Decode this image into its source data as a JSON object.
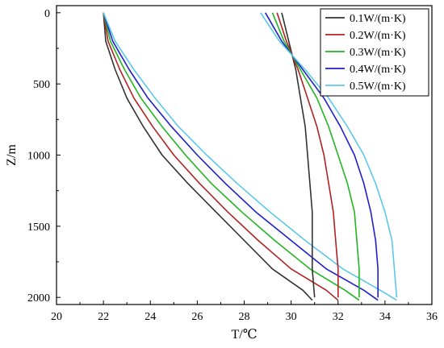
{
  "chart_data": {
    "type": "line",
    "title": "",
    "xlabel": "T/℃",
    "ylabel": "Z/m",
    "xlim": [
      20,
      36
    ],
    "ylim": [
      2050,
      -50
    ],
    "y_inverted": true,
    "x_ticks": [
      20,
      22,
      24,
      26,
      28,
      30,
      32,
      34,
      36
    ],
    "y_ticks": [
      0,
      500,
      1000,
      1500,
      2000
    ],
    "grid": false,
    "legend_position": "top-right",
    "series": [
      {
        "name": "0.1W/(m·K)",
        "color": "#333333",
        "group": "lower",
        "points": [
          [
            22.0,
            0
          ],
          [
            22.1,
            200
          ],
          [
            22.5,
            400
          ],
          [
            23.0,
            600
          ],
          [
            23.7,
            800
          ],
          [
            24.5,
            1000
          ],
          [
            25.6,
            1200
          ],
          [
            26.8,
            1400
          ],
          [
            28.0,
            1600
          ],
          [
            29.2,
            1800
          ],
          [
            30.5,
            1950
          ],
          [
            30.9,
            2020
          ]
        ]
      },
      {
        "name": "0.2W/(m·K)",
        "color": "#b22222",
        "group": "lower",
        "points": [
          [
            22.0,
            0
          ],
          [
            22.2,
            200
          ],
          [
            22.7,
            400
          ],
          [
            23.3,
            600
          ],
          [
            24.1,
            800
          ],
          [
            25.0,
            1000
          ],
          [
            26.1,
            1200
          ],
          [
            27.3,
            1400
          ],
          [
            28.6,
            1600
          ],
          [
            30.0,
            1800
          ],
          [
            31.5,
            1950
          ],
          [
            32.0,
            2020
          ]
        ]
      },
      {
        "name": "0.3W/(m·K)",
        "color": "#22b522",
        "group": "lower",
        "points": [
          [
            22.0,
            0
          ],
          [
            22.3,
            200
          ],
          [
            22.9,
            400
          ],
          [
            23.6,
            600
          ],
          [
            24.5,
            800
          ],
          [
            25.5,
            1000
          ],
          [
            26.6,
            1200
          ],
          [
            27.9,
            1400
          ],
          [
            29.3,
            1600
          ],
          [
            30.8,
            1800
          ],
          [
            32.3,
            1950
          ],
          [
            32.9,
            2020
          ]
        ]
      },
      {
        "name": "0.4W/(m·K)",
        "color": "#1f1fcc",
        "group": "lower",
        "points": [
          [
            22.0,
            0
          ],
          [
            22.4,
            200
          ],
          [
            23.1,
            400
          ],
          [
            23.9,
            600
          ],
          [
            24.9,
            800
          ],
          [
            26.0,
            1000
          ],
          [
            27.2,
            1200
          ],
          [
            28.5,
            1400
          ],
          [
            30.0,
            1600
          ],
          [
            31.5,
            1800
          ],
          [
            33.1,
            1950
          ],
          [
            33.7,
            2020
          ]
        ]
      },
      {
        "name": "0.5W/(m·K)",
        "color": "#5bc8ea",
        "group": "lower",
        "points": [
          [
            22.0,
            0
          ],
          [
            22.5,
            200
          ],
          [
            23.3,
            400
          ],
          [
            24.2,
            600
          ],
          [
            25.2,
            800
          ],
          [
            26.4,
            1000
          ],
          [
            27.7,
            1200
          ],
          [
            29.1,
            1400
          ],
          [
            30.6,
            1600
          ],
          [
            32.2,
            1800
          ],
          [
            33.8,
            1950
          ],
          [
            34.5,
            2020
          ]
        ]
      },
      {
        "name": "",
        "color": "#333333",
        "group": "upper",
        "points": [
          [
            29.6,
            0
          ],
          [
            29.9,
            200
          ],
          [
            30.2,
            400
          ],
          [
            30.4,
            600
          ],
          [
            30.6,
            800
          ],
          [
            30.7,
            1000
          ],
          [
            30.8,
            1200
          ],
          [
            30.9,
            1400
          ],
          [
            30.9,
            1600
          ],
          [
            30.9,
            1800
          ],
          [
            31.0,
            2000
          ]
        ]
      },
      {
        "name": "",
        "color": "#b22222",
        "group": "upper",
        "points": [
          [
            29.4,
            0
          ],
          [
            29.8,
            200
          ],
          [
            30.3,
            400
          ],
          [
            30.7,
            600
          ],
          [
            31.1,
            800
          ],
          [
            31.4,
            1000
          ],
          [
            31.6,
            1200
          ],
          [
            31.8,
            1400
          ],
          [
            31.9,
            1600
          ],
          [
            32.0,
            1800
          ],
          [
            32.0,
            2000
          ]
        ]
      },
      {
        "name": "",
        "color": "#22b522",
        "group": "upper",
        "points": [
          [
            29.2,
            0
          ],
          [
            29.7,
            200
          ],
          [
            30.4,
            400
          ],
          [
            31.1,
            600
          ],
          [
            31.6,
            800
          ],
          [
            32.0,
            1000
          ],
          [
            32.4,
            1200
          ],
          [
            32.7,
            1400
          ],
          [
            32.8,
            1600
          ],
          [
            32.9,
            1800
          ],
          [
            32.9,
            2000
          ]
        ]
      },
      {
        "name": "",
        "color": "#1f1fcc",
        "group": "upper",
        "points": [
          [
            28.9,
            0
          ],
          [
            29.6,
            200
          ],
          [
            30.5,
            400
          ],
          [
            31.4,
            600
          ],
          [
            32.1,
            800
          ],
          [
            32.7,
            1000
          ],
          [
            33.1,
            1200
          ],
          [
            33.4,
            1400
          ],
          [
            33.6,
            1600
          ],
          [
            33.7,
            1800
          ],
          [
            33.7,
            2000
          ]
        ]
      },
      {
        "name": "",
        "color": "#5bc8ea",
        "group": "upper",
        "points": [
          [
            28.7,
            0
          ],
          [
            29.5,
            200
          ],
          [
            30.6,
            400
          ],
          [
            31.6,
            600
          ],
          [
            32.4,
            800
          ],
          [
            33.1,
            1000
          ],
          [
            33.6,
            1200
          ],
          [
            34.0,
            1400
          ],
          [
            34.3,
            1600
          ],
          [
            34.4,
            1800
          ],
          [
            34.5,
            2000
          ]
        ]
      }
    ]
  }
}
